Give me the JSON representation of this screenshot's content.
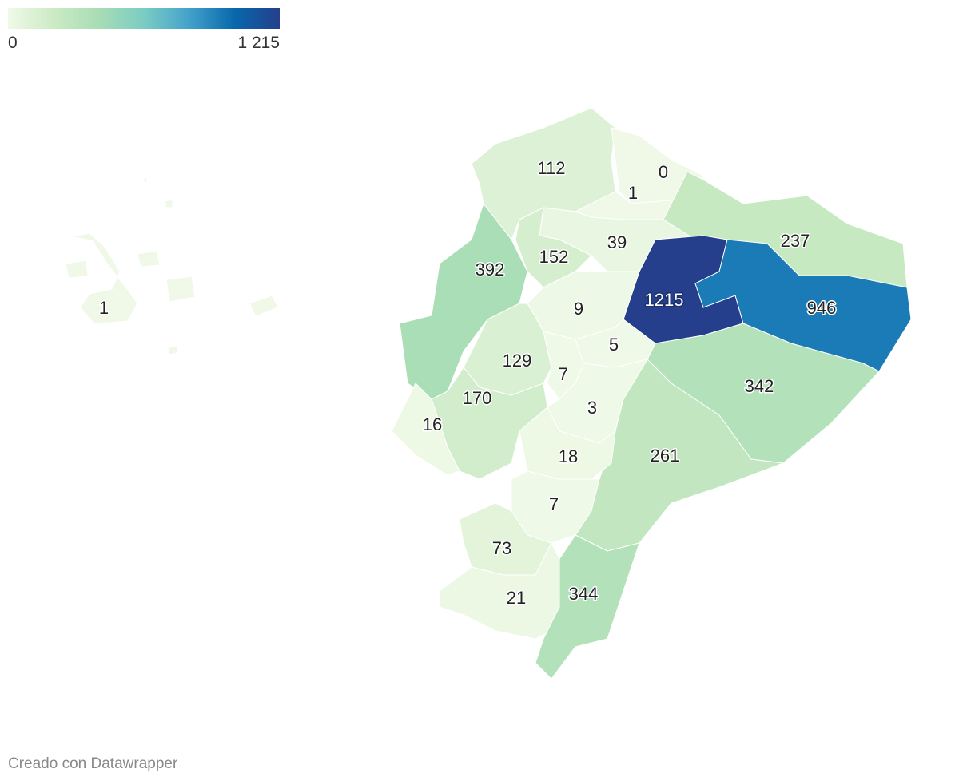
{
  "chart_data": {
    "type": "choropleth",
    "legend": {
      "min": 0,
      "max": {
        "value": 1215,
        "label": "1 215"
      },
      "colors": [
        "#f0f9e8",
        "#ccebc5",
        "#a8ddb5",
        "#7bccc4",
        "#43a2ca",
        "#0868ac",
        "#253f8c"
      ]
    },
    "regions": [
      {
        "value": 112
      },
      {
        "value": 0
      },
      {
        "value": 1
      },
      {
        "value": 237
      },
      {
        "value": 39
      },
      {
        "value": 152
      },
      {
        "value": 392
      },
      {
        "value": 1215
      },
      {
        "value": 946
      },
      {
        "value": 9
      },
      {
        "value": 5
      },
      {
        "value": 342
      },
      {
        "value": 129
      },
      {
        "value": 7
      },
      {
        "value": 170
      },
      {
        "value": 16
      },
      {
        "value": 3
      },
      {
        "value": 261
      },
      {
        "value": 18
      },
      {
        "value": 7
      },
      {
        "value": 73
      },
      {
        "value": 21
      },
      {
        "value": 344
      },
      {
        "value": 1
      }
    ],
    "credit": "Creado con Datawrapper"
  }
}
